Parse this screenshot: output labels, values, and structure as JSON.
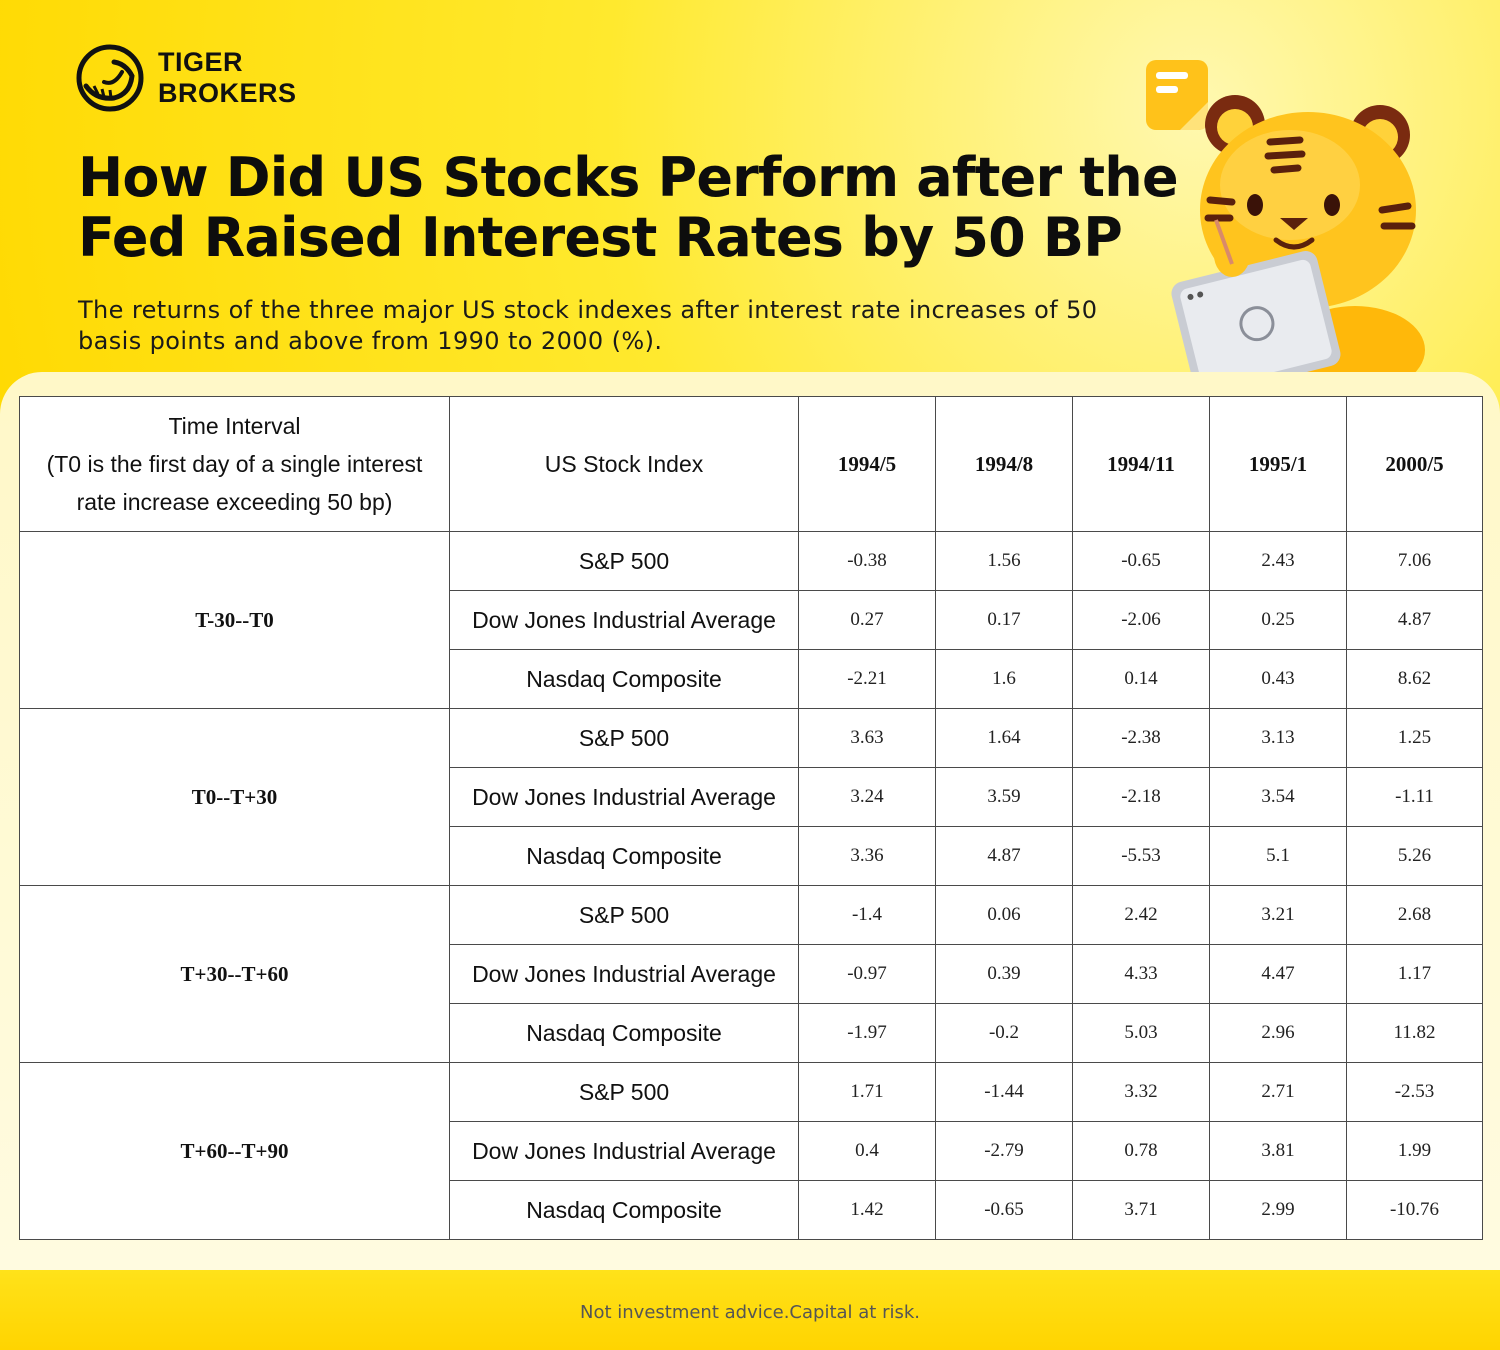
{
  "brand": {
    "line1": "TIGER",
    "line2": "BROKERS"
  },
  "title": "How Did US Stocks Perform after the Fed Raised Interest Rates by 50 BP",
  "subtitle": "The returns of the three major US stock indexes after interest rate increases of 50 basis points and above from 1990 to 2000 (%).",
  "table": {
    "header_interval_lines": [
      "Time Interval",
      "(T0 is the first day of a single interest",
      "rate increase exceeding 50 bp)"
    ],
    "header_index": "US Stock Index",
    "dates": [
      "1994/5",
      "1994/8",
      "1994/11",
      "1995/1",
      "2000/5"
    ],
    "groups": [
      {
        "interval": "T-30--T0",
        "rows": [
          {
            "index": "S&P 500",
            "values": [
              "-0.38",
              "1.56",
              "-0.65",
              "2.43",
              "7.06"
            ]
          },
          {
            "index": "Dow Jones Industrial Average",
            "values": [
              "0.27",
              "0.17",
              "-2.06",
              "0.25",
              "4.87"
            ]
          },
          {
            "index": "Nasdaq Composite",
            "values": [
              "-2.21",
              "1.6",
              "0.14",
              "0.43",
              "8.62"
            ]
          }
        ]
      },
      {
        "interval": "T0--T+30",
        "rows": [
          {
            "index": "S&P 500",
            "values": [
              "3.63",
              "1.64",
              "-2.38",
              "3.13",
              "1.25"
            ]
          },
          {
            "index": "Dow Jones Industrial Average",
            "values": [
              "3.24",
              "3.59",
              "-2.18",
              "3.54",
              "-1.11"
            ]
          },
          {
            "index": "Nasdaq Composite",
            "values": [
              "3.36",
              "4.87",
              "-5.53",
              "5.1",
              "5.26"
            ]
          }
        ]
      },
      {
        "interval": "T+30--T+60",
        "rows": [
          {
            "index": "S&P 500",
            "values": [
              "-1.4",
              "0.06",
              "2.42",
              "3.21",
              "2.68"
            ]
          },
          {
            "index": "Dow Jones Industrial Average",
            "values": [
              "-0.97",
              "0.39",
              "4.33",
              "4.47",
              "1.17"
            ]
          },
          {
            "index": "Nasdaq Composite",
            "values": [
              "-1.97",
              "-0.2",
              "5.03",
              "2.96",
              "11.82"
            ]
          }
        ]
      },
      {
        "interval": "T+60--T+90",
        "rows": [
          {
            "index": "S&P 500",
            "values": [
              "1.71",
              "-1.44",
              "3.32",
              "2.71",
              "-2.53"
            ]
          },
          {
            "index": "Dow Jones Industrial Average",
            "values": [
              "0.4",
              "-2.79",
              "0.78",
              "3.81",
              "1.99"
            ]
          },
          {
            "index": "Nasdaq Composite",
            "values": [
              "1.42",
              "-0.65",
              "3.71",
              "2.99",
              "-10.76"
            ]
          }
        ]
      }
    ]
  },
  "disclaimer": "Not investment advice.Capital at risk.",
  "icons": {
    "logo": "tiger-logo-icon",
    "mascot": "tiger-mascot-icon",
    "note": "sticky-note-icon"
  },
  "colors": {
    "background": "#ffe100",
    "panel": "#fffbe0",
    "border": "#4a4a4a",
    "text": "#111111"
  }
}
